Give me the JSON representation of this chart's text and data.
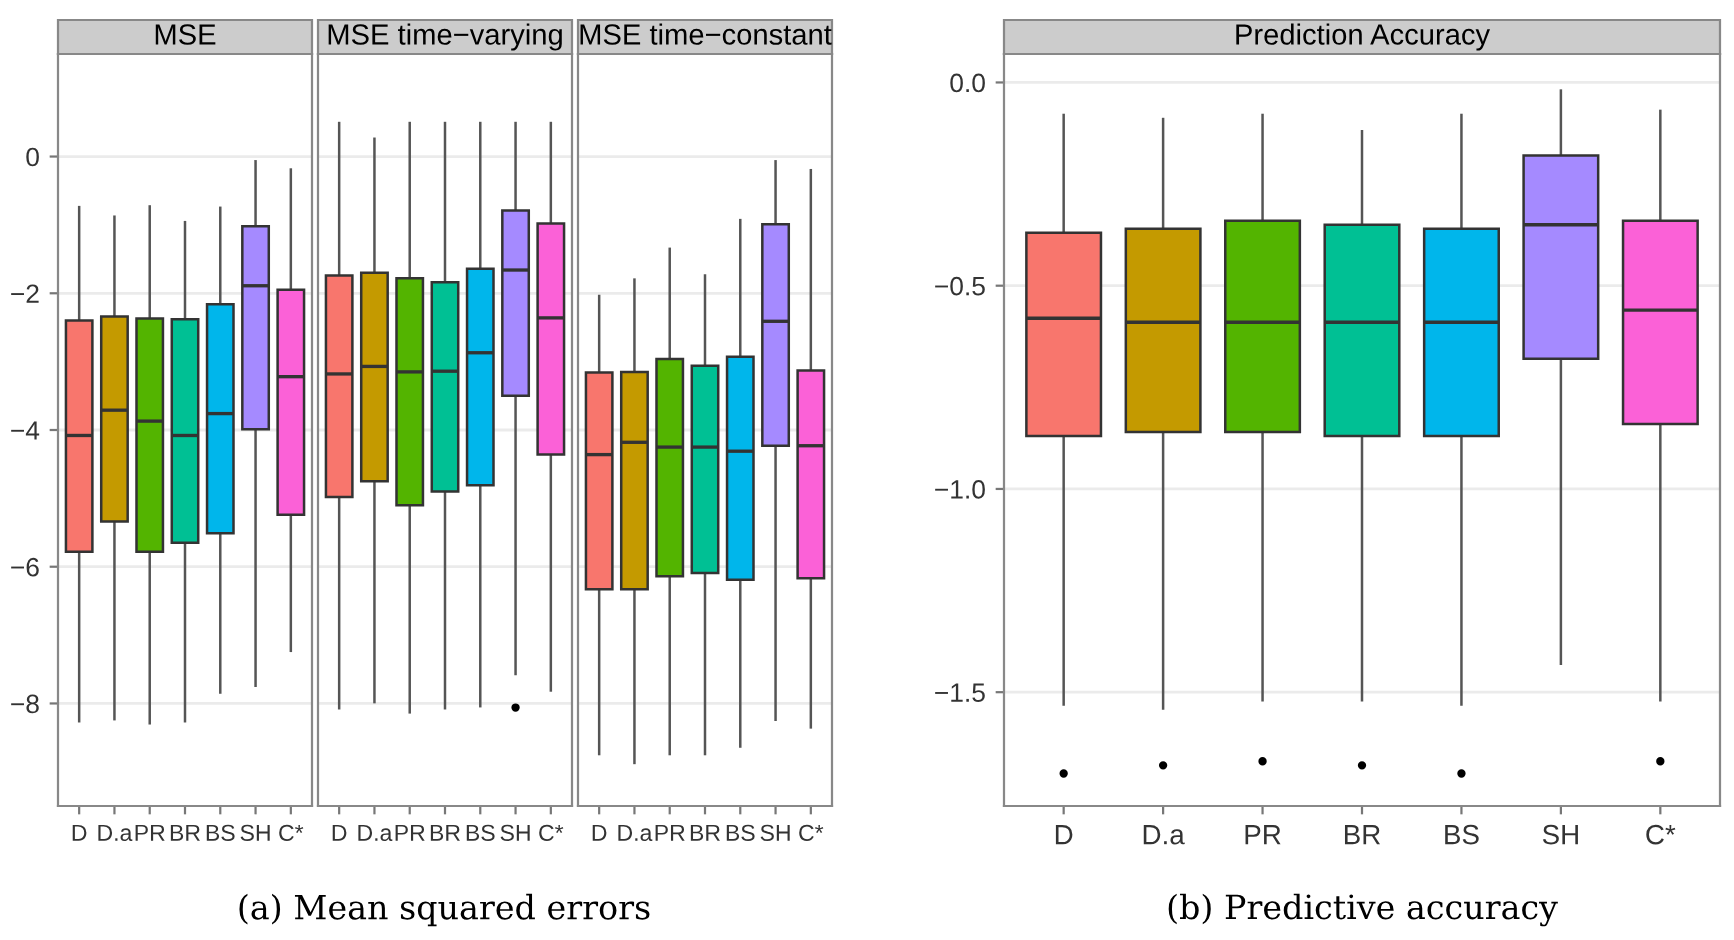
{
  "chart_data": [
    {
      "type": "box",
      "title": "MSE",
      "categories": [
        "D",
        "D.a",
        "PR",
        "BR",
        "BS",
        "SH",
        "C*"
      ],
      "colors": [
        "#f8766d",
        "#c49a00",
        "#53b400",
        "#00c094",
        "#00b6eb",
        "#a58aff",
        "#fb61d7"
      ],
      "ylim": [
        -9.5,
        1.5
      ],
      "yticks": [
        -8,
        -6,
        -4,
        -2,
        0
      ],
      "grid": "y",
      "annotations": [
        "(a) Mean squared errors"
      ],
      "boxes": [
        {
          "low": -8.26,
          "q1": -5.78,
          "median": -4.08,
          "q3": -2.4,
          "high": -0.74
        },
        {
          "low": -8.23,
          "q1": -5.34,
          "median": -3.71,
          "q3": -2.34,
          "high": -0.88
        },
        {
          "low": -8.29,
          "q1": -5.78,
          "median": -3.87,
          "q3": -2.37,
          "high": -0.73
        },
        {
          "low": -8.26,
          "q1": -5.65,
          "median": -4.08,
          "q3": -2.38,
          "high": -0.96
        },
        {
          "low": -7.84,
          "q1": -5.51,
          "median": -3.76,
          "q3": -2.16,
          "high": -0.75
        },
        {
          "low": -7.74,
          "q1": -3.99,
          "median": -1.89,
          "q3": -1.02,
          "high": -0.07
        },
        {
          "low": -7.23,
          "q1": -5.24,
          "median": -3.22,
          "q3": -1.95,
          "high": -0.19
        }
      ]
    },
    {
      "type": "box",
      "title": "MSE time−varying",
      "categories": [
        "D",
        "D.a",
        "PR",
        "BR",
        "BS",
        "SH",
        "C*"
      ],
      "colors": [
        "#f8766d",
        "#c49a00",
        "#53b400",
        "#00c094",
        "#00b6eb",
        "#a58aff",
        "#fb61d7"
      ],
      "ylim": [
        -9.5,
        1.5
      ],
      "yticks": [
        -8,
        -6,
        -4,
        -2,
        0
      ],
      "grid": "y",
      "tick_labels": "x",
      "boxes": [
        {
          "low": -8.07,
          "q1": -4.98,
          "median": -3.18,
          "q3": -1.74,
          "high": 0.49
        },
        {
          "low": -7.98,
          "q1": -4.75,
          "median": -3.07,
          "q3": -1.7,
          "high": 0.26
        },
        {
          "low": -8.13,
          "q1": -5.1,
          "median": -3.15,
          "q3": -1.78,
          "high": 0.49
        },
        {
          "low": -8.07,
          "q1": -4.9,
          "median": -3.14,
          "q3": -1.84,
          "high": 0.49
        },
        {
          "low": -8.04,
          "q1": -4.81,
          "median": -2.87,
          "q3": -1.64,
          "high": 0.49
        },
        {
          "low": -7.57,
          "q1": -3.5,
          "median": -1.66,
          "q3": -0.79,
          "high": 0.49,
          "outliers": [
            -8.06
          ]
        },
        {
          "low": -7.81,
          "q1": -4.36,
          "median": -2.36,
          "q3": -0.98,
          "high": 0.49
        }
      ]
    },
    {
      "type": "box",
      "title": "MSE time−constant",
      "categories": [
        "D",
        "D.a",
        "PR",
        "BR",
        "BS",
        "SH",
        "C*"
      ],
      "colors": [
        "#f8766d",
        "#c49a00",
        "#53b400",
        "#00c094",
        "#00b6eb",
        "#a58aff",
        "#fb61d7"
      ],
      "ylim": [
        -9.5,
        1.5
      ],
      "yticks": [
        -8,
        -6,
        -4,
        -2,
        0
      ],
      "grid": "y",
      "tick_labels": "x",
      "boxes": [
        {
          "low": -8.74,
          "q1": -6.33,
          "median": -4.36,
          "q3": -3.16,
          "high": -2.04
        },
        {
          "low": -8.87,
          "q1": -6.33,
          "median": -4.18,
          "q3": -3.15,
          "high": -1.8
        },
        {
          "low": -8.74,
          "q1": -6.14,
          "median": -4.25,
          "q3": -2.96,
          "high": -1.35
        },
        {
          "low": -8.74,
          "q1": -6.09,
          "median": -4.25,
          "q3": -3.06,
          "high": -1.74
        },
        {
          "low": -8.63,
          "q1": -6.19,
          "median": -4.31,
          "q3": -2.93,
          "high": -0.93
        },
        {
          "low": -8.24,
          "q1": -4.23,
          "median": -2.41,
          "q3": -0.99,
          "high": -0.07
        },
        {
          "low": -8.35,
          "q1": -6.17,
          "median": -4.23,
          "q3": -3.13,
          "high": -0.2
        }
      ]
    },
    {
      "type": "box",
      "title": "Prediction Accuracy",
      "categories": [
        "D",
        "D.a",
        "PR",
        "BR",
        "BS",
        "SH",
        "C*"
      ],
      "colors": [
        "#f8766d",
        "#c49a00",
        "#53b400",
        "#00c094",
        "#00b6eb",
        "#a58aff",
        "#fb61d7"
      ],
      "ylim": [
        -1.78,
        0.07
      ],
      "yticks": [
        {
          "value": -1.5,
          "label": "−1.5"
        },
        {
          "value": -1.0,
          "label": "−1.0"
        },
        {
          "value": -0.5,
          "label": "−0.5"
        },
        {
          "value": 0.0,
          "label": "0.0"
        }
      ],
      "grid": "y",
      "annotations": [
        "(b) Predictive accuracy"
      ],
      "boxes": [
        {
          "low": -1.53,
          "q1": -0.87,
          "median": -0.58,
          "q3": -0.37,
          "high": -0.08,
          "outliers": [
            -1.7
          ]
        },
        {
          "low": -1.54,
          "q1": -0.86,
          "median": -0.59,
          "q3": -0.36,
          "high": -0.09,
          "outliers": [
            -1.68
          ]
        },
        {
          "low": -1.52,
          "q1": -0.86,
          "median": -0.59,
          "q3": -0.34,
          "high": -0.08,
          "outliers": [
            -1.67
          ]
        },
        {
          "low": -1.52,
          "q1": -0.87,
          "median": -0.59,
          "q3": -0.35,
          "high": -0.12,
          "outliers": [
            -1.68
          ]
        },
        {
          "low": -1.53,
          "q1": -0.87,
          "median": -0.59,
          "q3": -0.36,
          "high": -0.08,
          "outliers": [
            -1.7
          ]
        },
        {
          "low": -1.43,
          "q1": -0.68,
          "median": -0.35,
          "q3": -0.18,
          "high": -0.02
        },
        {
          "low": -1.52,
          "q1": -0.84,
          "median": -0.56,
          "q3": -0.34,
          "high": -0.07,
          "outliers": [
            -1.67
          ]
        }
      ]
    }
  ]
}
